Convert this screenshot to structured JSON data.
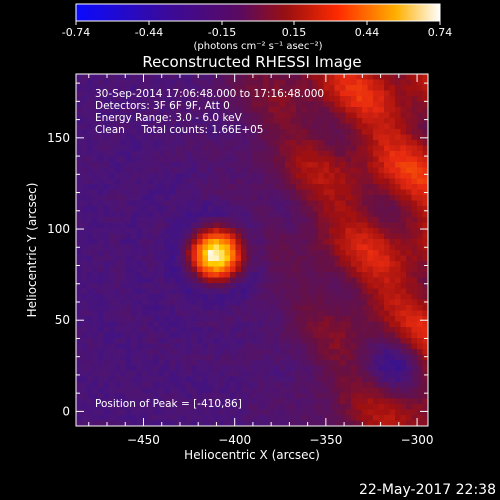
{
  "colorbar": {
    "ticks": [
      "-0.74",
      "-0.44",
      "-0.15",
      "0.15",
      "0.44",
      "0.74"
    ],
    "unit_label": "(photons cm⁻² s⁻¹ asec⁻²)",
    "colors": [
      "#0a0aff",
      "#3a0a9a",
      "#5a0a60",
      "#9a1010",
      "#ff2a00",
      "#ffb000",
      "#ffffff"
    ]
  },
  "title": "Reconstructed RHESSI Image",
  "info": {
    "line1": "30-Sep-2014 17:06:48.000 to 17:16:48.000",
    "line2": "Detectors: 3F 6F 9F, Att 0",
    "line3": "Energy Range: 3.0 - 6.0 keV",
    "line4": "Clean     Total counts: 1.66E+05"
  },
  "peak_label": "Position of Peak = [-410,86]",
  "footer_date": "22-May-2017 22:38",
  "chart_data": {
    "type": "heatmap",
    "title": "Reconstructed RHESSI Image",
    "xlabel": "Heliocentric X (arcsec)",
    "ylabel": "Heliocentric Y (arcsec)",
    "xlim": [
      -487,
      -294
    ],
    "ylim": [
      -8,
      185
    ],
    "x_ticks": [
      -450,
      -400,
      -350,
      -300
    ],
    "y_ticks": [
      0,
      50,
      100,
      150
    ],
    "x_tick_labels": [
      "−450",
      "−400",
      "−350",
      "−300"
    ],
    "y_tick_labels": [
      "0",
      "50",
      "100",
      "150"
    ],
    "color_range": [
      -0.74,
      0.74
    ],
    "peak": {
      "x": -410,
      "y": 86
    },
    "colormap": [
      [
        0.0,
        "#0a0aff"
      ],
      [
        0.18,
        "#2d0f9e"
      ],
      [
        0.3,
        "#4a1478"
      ],
      [
        0.45,
        "#6a1040"
      ],
      [
        0.55,
        "#a01010"
      ],
      [
        0.68,
        "#e82a10"
      ],
      [
        0.8,
        "#ff7000"
      ],
      [
        0.92,
        "#ffd000"
      ],
      [
        1.0,
        "#ffffff"
      ]
    ]
  }
}
